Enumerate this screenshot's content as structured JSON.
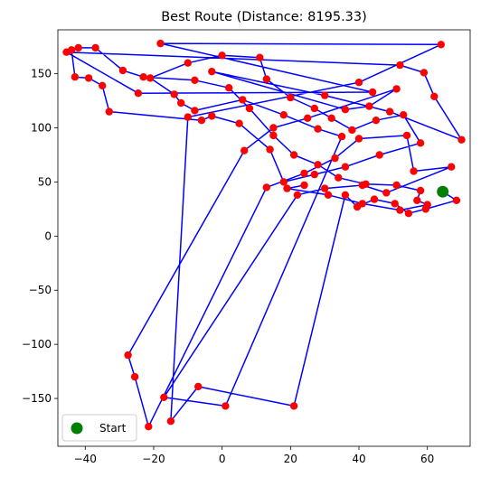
{
  "chart_data": {
    "type": "line",
    "title": "Best Route (Distance: 8195.33)",
    "xlabel": "",
    "ylabel": "",
    "xlim": [
      -48,
      72.5
    ],
    "ylim": [
      -194.2,
      190.6
    ],
    "x_ticks": [
      -40,
      -20,
      0,
      20,
      40,
      60
    ],
    "y_ticks": [
      -150,
      -100,
      -50,
      0,
      50,
      100,
      150
    ],
    "grid": false,
    "legend": {
      "position": "lower-left",
      "entries": [
        {
          "label": "Start",
          "marker": "circle",
          "color": "#008000"
        }
      ]
    },
    "colors": {
      "route": "#0000ff",
      "cities": "#ff0000",
      "start": "#008000"
    },
    "start": {
      "x": 64.5,
      "y": 41
    },
    "points": [
      {
        "x": 64.5,
        "y": 41
      },
      {
        "x": 68.5,
        "y": 33
      },
      {
        "x": 59.5,
        "y": 25
      },
      {
        "x": 54.5,
        "y": 21
      },
      {
        "x": 50.5,
        "y": 30
      },
      {
        "x": 44.5,
        "y": 34
      },
      {
        "x": 39.5,
        "y": 27
      },
      {
        "x": 36,
        "y": 38
      },
      {
        "x": 21,
        "y": -157
      },
      {
        "x": -7,
        "y": -139
      },
      {
        "x": -15,
        "y": -171
      },
      {
        "x": -10,
        "y": 110
      },
      {
        "x": 40,
        "y": 142
      },
      {
        "x": 64,
        "y": 177
      },
      {
        "x": -18,
        "y": 178
      },
      {
        "x": 44,
        "y": 133
      },
      {
        "x": -24.5,
        "y": 132
      },
      {
        "x": -45.5,
        "y": 170
      },
      {
        "x": 52,
        "y": 158
      },
      {
        "x": 59,
        "y": 151
      },
      {
        "x": 62,
        "y": 129
      },
      {
        "x": 70,
        "y": 89
      },
      {
        "x": 49,
        "y": 115
      },
      {
        "x": 30,
        "y": 130
      },
      {
        "x": -3,
        "y": 152
      },
      {
        "x": 36,
        "y": 117
      },
      {
        "x": 43,
        "y": 120
      },
      {
        "x": 51,
        "y": 136
      },
      {
        "x": 25,
        "y": 109
      },
      {
        "x": 15,
        "y": 100
      },
      {
        "x": 6.5,
        "y": 79
      },
      {
        "x": -27.5,
        "y": -110
      },
      {
        "x": -25.5,
        "y": -130
      },
      {
        "x": -21.5,
        "y": -176
      },
      {
        "x": 13,
        "y": 45
      },
      {
        "x": 24,
        "y": 58
      },
      {
        "x": 33,
        "y": 72
      },
      {
        "x": 40,
        "y": 90
      },
      {
        "x": 54,
        "y": 93
      },
      {
        "x": 56,
        "y": 60
      },
      {
        "x": 67,
        "y": 64
      },
      {
        "x": 48,
        "y": 40
      },
      {
        "x": 41,
        "y": 47
      },
      {
        "x": 30,
        "y": 44
      },
      {
        "x": 22,
        "y": 38
      },
      {
        "x": -17,
        "y": -149
      },
      {
        "x": 1,
        "y": -157
      },
      {
        "x": 35,
        "y": 92
      },
      {
        "x": 28,
        "y": 99
      },
      {
        "x": 18,
        "y": 112
      },
      {
        "x": 6,
        "y": 126
      },
      {
        "x": -8,
        "y": 116
      },
      {
        "x": -12,
        "y": 123
      },
      {
        "x": -14,
        "y": 131
      },
      {
        "x": -21,
        "y": 146
      },
      {
        "x": -10,
        "y": 160
      },
      {
        "x": 0,
        "y": 167
      },
      {
        "x": 11,
        "y": 165
      },
      {
        "x": 13,
        "y": 145
      },
      {
        "x": 20,
        "y": 128
      },
      {
        "x": 27,
        "y": 118
      },
      {
        "x": 32,
        "y": 109
      },
      {
        "x": 38,
        "y": 98
      },
      {
        "x": 45,
        "y": 107
      },
      {
        "x": 53,
        "y": 112
      },
      {
        "x": 58,
        "y": 86
      },
      {
        "x": 46,
        "y": 75
      },
      {
        "x": 36,
        "y": 64
      },
      {
        "x": 27,
        "y": 57
      },
      {
        "x": 18,
        "y": 50
      },
      {
        "x": 14,
        "y": 80
      },
      {
        "x": 5,
        "y": 104
      },
      {
        "x": -3,
        "y": 111
      },
      {
        "x": -6,
        "y": 107
      },
      {
        "x": -33,
        "y": 115
      },
      {
        "x": -35,
        "y": 139
      },
      {
        "x": -39,
        "y": 146
      },
      {
        "x": -43,
        "y": 147
      },
      {
        "x": -44,
        "y": 172
      },
      {
        "x": -42,
        "y": 174
      },
      {
        "x": -37,
        "y": 174
      },
      {
        "x": -29,
        "y": 153
      },
      {
        "x": -23,
        "y": 147
      },
      {
        "x": -8,
        "y": 144
      },
      {
        "x": 2,
        "y": 137
      },
      {
        "x": 8,
        "y": 118
      },
      {
        "x": 15,
        "y": 93
      },
      {
        "x": 21,
        "y": 75
      },
      {
        "x": 28,
        "y": 66
      },
      {
        "x": 34,
        "y": 54
      },
      {
        "x": 42,
        "y": 48
      },
      {
        "x": 51,
        "y": 47
      },
      {
        "x": 58,
        "y": 42
      },
      {
        "x": 57,
        "y": 33
      },
      {
        "x": 60,
        "y": 29
      },
      {
        "x": 52,
        "y": 24
      },
      {
        "x": 41,
        "y": 30
      },
      {
        "x": 31,
        "y": 38
      },
      {
        "x": 19,
        "y": 44
      },
      {
        "x": 24,
        "y": 47
      }
    ]
  }
}
